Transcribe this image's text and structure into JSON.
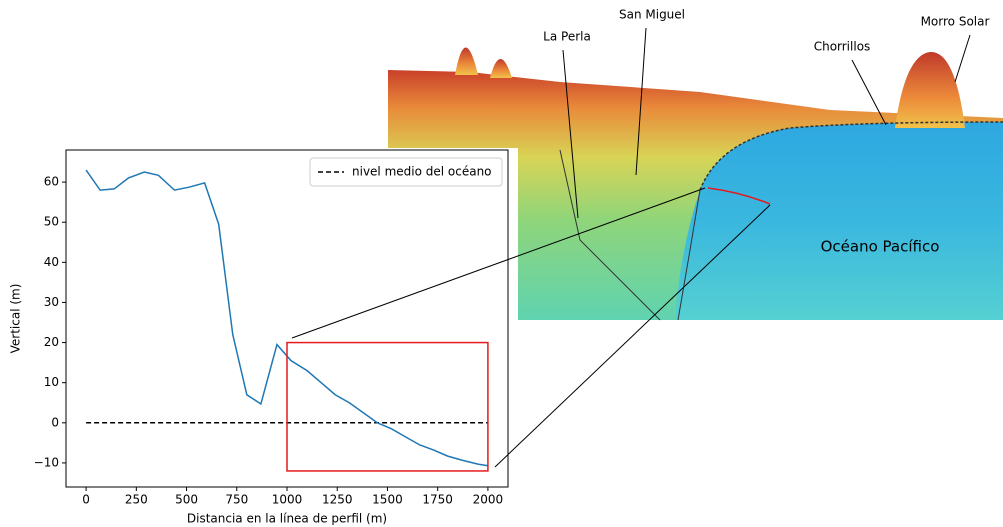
{
  "chart_data": {
    "type": "line",
    "xlabel": "Distancia en la línea de perfil (m)",
    "ylabel": "Vertical (m)",
    "xlim": [
      -100,
      2100
    ],
    "ylim": [
      -16,
      68
    ],
    "xticks": [
      0,
      250,
      500,
      750,
      1000,
      1250,
      1500,
      1750,
      2000
    ],
    "yticks": [
      {
        "value": -10,
        "label": "−10"
      },
      0,
      10,
      20,
      30,
      40,
      50,
      60
    ],
    "legend": "upper right",
    "series": [
      {
        "name": "nivel medio del océano",
        "color": "#000000",
        "linestyle": "dashed",
        "x": [
          0,
          2000
        ],
        "values": [
          0,
          0
        ]
      },
      {
        "name": null,
        "color": "#1f77b4",
        "linestyle": "solid",
        "x": [
          0,
          70,
          140,
          210,
          290,
          360,
          440,
          510,
          590,
          660,
          730,
          800,
          870,
          950,
          1020,
          1100,
          1170,
          1240,
          1310,
          1380,
          1450,
          1520,
          1590,
          1660,
          1730,
          1800,
          1870,
          1950,
          2000
        ],
        "values": [
          63,
          58,
          58.3,
          61,
          62.5,
          61.7,
          58,
          58.7,
          59.8,
          49.5,
          22,
          7,
          4.7,
          19.5,
          15.5,
          13,
          10,
          7,
          5,
          2.5,
          0,
          -1.5,
          -3.5,
          -5.5,
          -6.8,
          -8.3,
          -9.3,
          -10.3,
          -10.7
        ]
      }
    ],
    "zoom_box": {
      "color": "#e41a1c",
      "x": [
        1000,
        2000
      ],
      "y": [
        -12,
        20
      ]
    }
  },
  "terrain": {
    "labels": [
      "La Perla",
      "San Miguel",
      "Chorrillos",
      "Morro Solar",
      "Océano Pacífico"
    ]
  }
}
